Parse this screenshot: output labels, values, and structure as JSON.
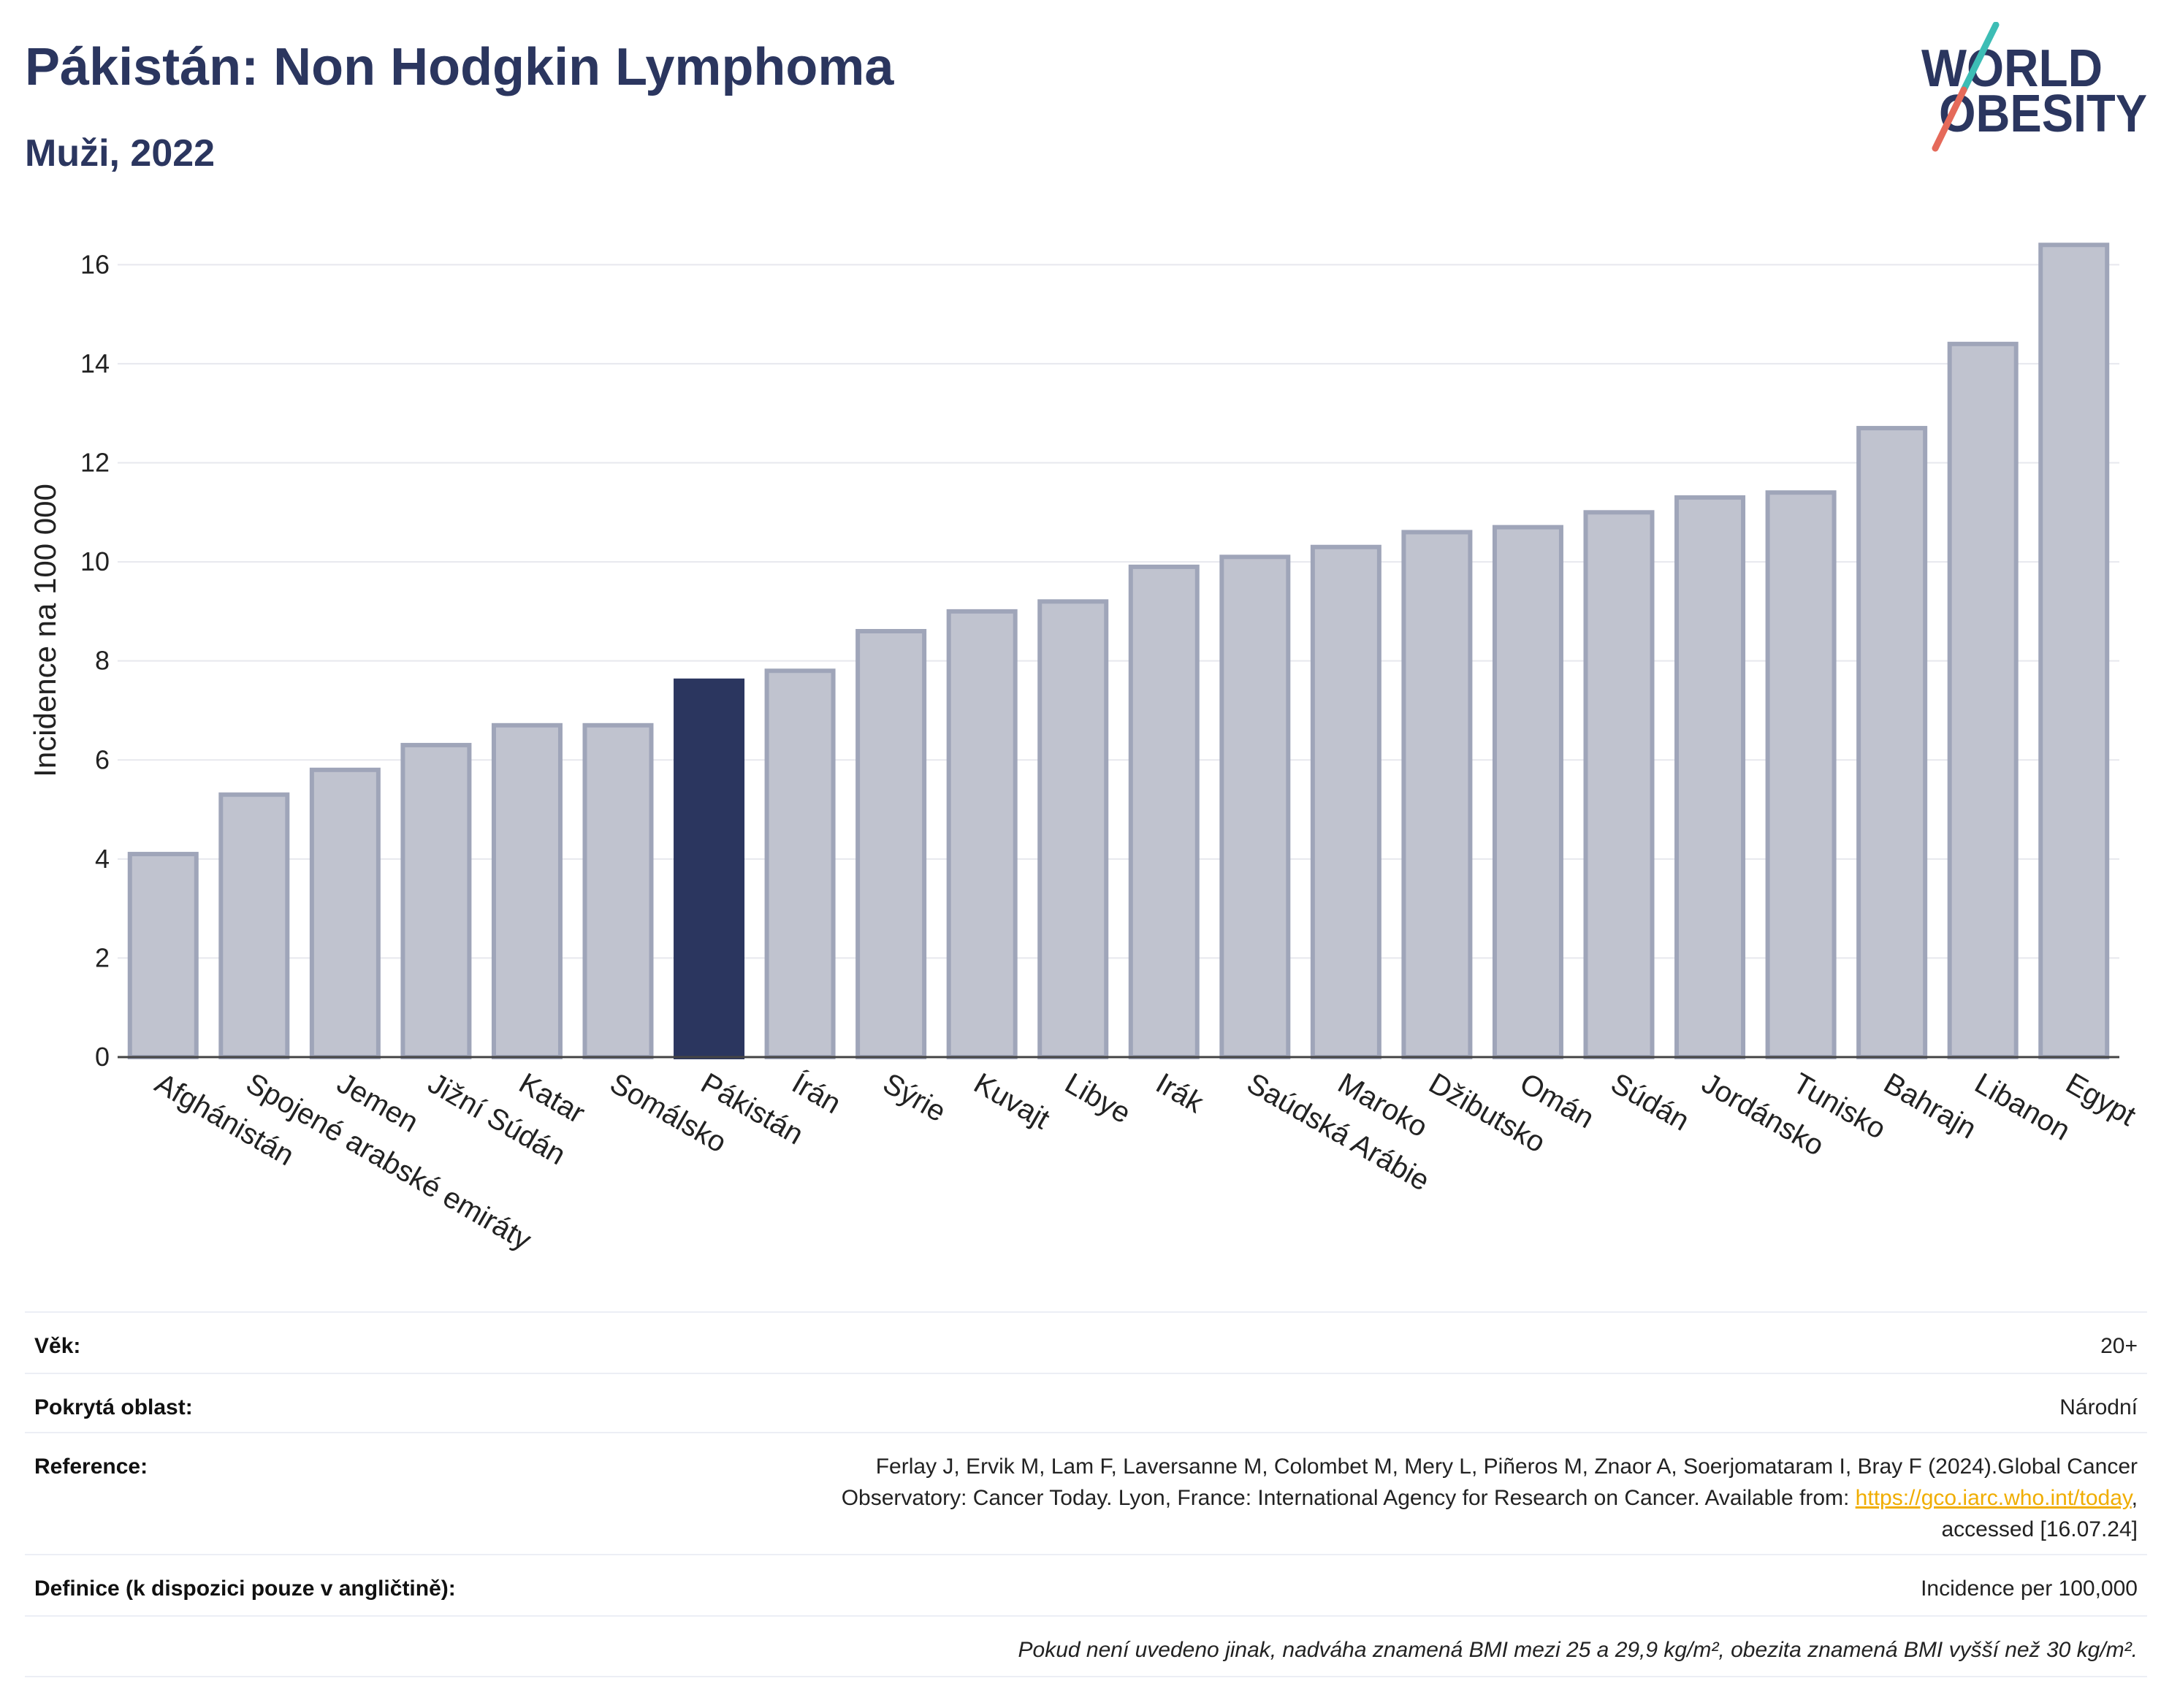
{
  "chart_data": {
    "type": "bar",
    "title": "Pákistán: Non Hodgkin Lymphoma",
    "subtitle": "Muži, 2022",
    "ylabel": "Incidence na 100 000",
    "categories": [
      "Afghánistán",
      "Spojené arabské emiráty",
      "Jemen",
      "Jižní Súdán",
      "Katar",
      "Somálsko",
      "Pákistán",
      "Írán",
      "Sýrie",
      "Kuvajt",
      "Libye",
      "Irák",
      "Saúdská Arábie",
      "Maroko",
      "Džibutsko",
      "Omán",
      "Súdán",
      "Jordánsko",
      "Tunisko",
      "Bahrajn",
      "Libanon",
      "Egypt"
    ],
    "values": [
      4.1,
      5.3,
      5.8,
      6.3,
      6.7,
      6.7,
      7.6,
      7.8,
      8.6,
      9.0,
      9.2,
      9.9,
      10.1,
      10.3,
      10.6,
      10.7,
      11.0,
      11.3,
      11.4,
      12.7,
      14.4,
      16.4
    ],
    "highlight_index": 6,
    "ylim": [
      0,
      17.2
    ],
    "yticks": [
      0,
      2,
      4,
      6,
      8,
      10,
      12,
      14,
      16
    ],
    "grid": true,
    "colors": {
      "highlight": "#2b365f",
      "bar_fill": "#c0c3cf",
      "bar_outline": "#9fa5b9",
      "grid": "#e7e8ee",
      "axis": "#444444"
    }
  },
  "logo": {
    "line1": "WORLD",
    "line2": "OBESITY",
    "text_color": "#2b365f",
    "slash_top_color": "#3dbdb5",
    "slash_bottom_color": "#e56a5a"
  },
  "info_table": {
    "age": {
      "label": "Věk:",
      "value": "20+"
    },
    "area": {
      "label": "Pokrytá oblast:",
      "value": "Národní"
    },
    "reference": {
      "label": "Reference:",
      "line1": "Ferlay J, Ervik M, Lam F, Laversanne M, Colombet M, Mery L, Piñeros M, Znaor A, Soerjomataram I, Bray F (2024).Global Cancer",
      "line2": "Observatory: Cancer Today. Lyon, France: International Agency for Research on Cancer. Available from: ",
      "link": "https://gco.iarc.who.int/today",
      "line2_end": ",",
      "line3": "accessed [16.07.24]"
    },
    "definition": {
      "label": "Definice (k dispozici pouze v angličtině):",
      "value": "Incidence per 100,000"
    },
    "note": "Pokud není uvedeno jinak, nadváha znamená BMI mezi 25 a 29,9 kg/m², obezita znamená BMI vyšší než 30 kg/m²."
  }
}
